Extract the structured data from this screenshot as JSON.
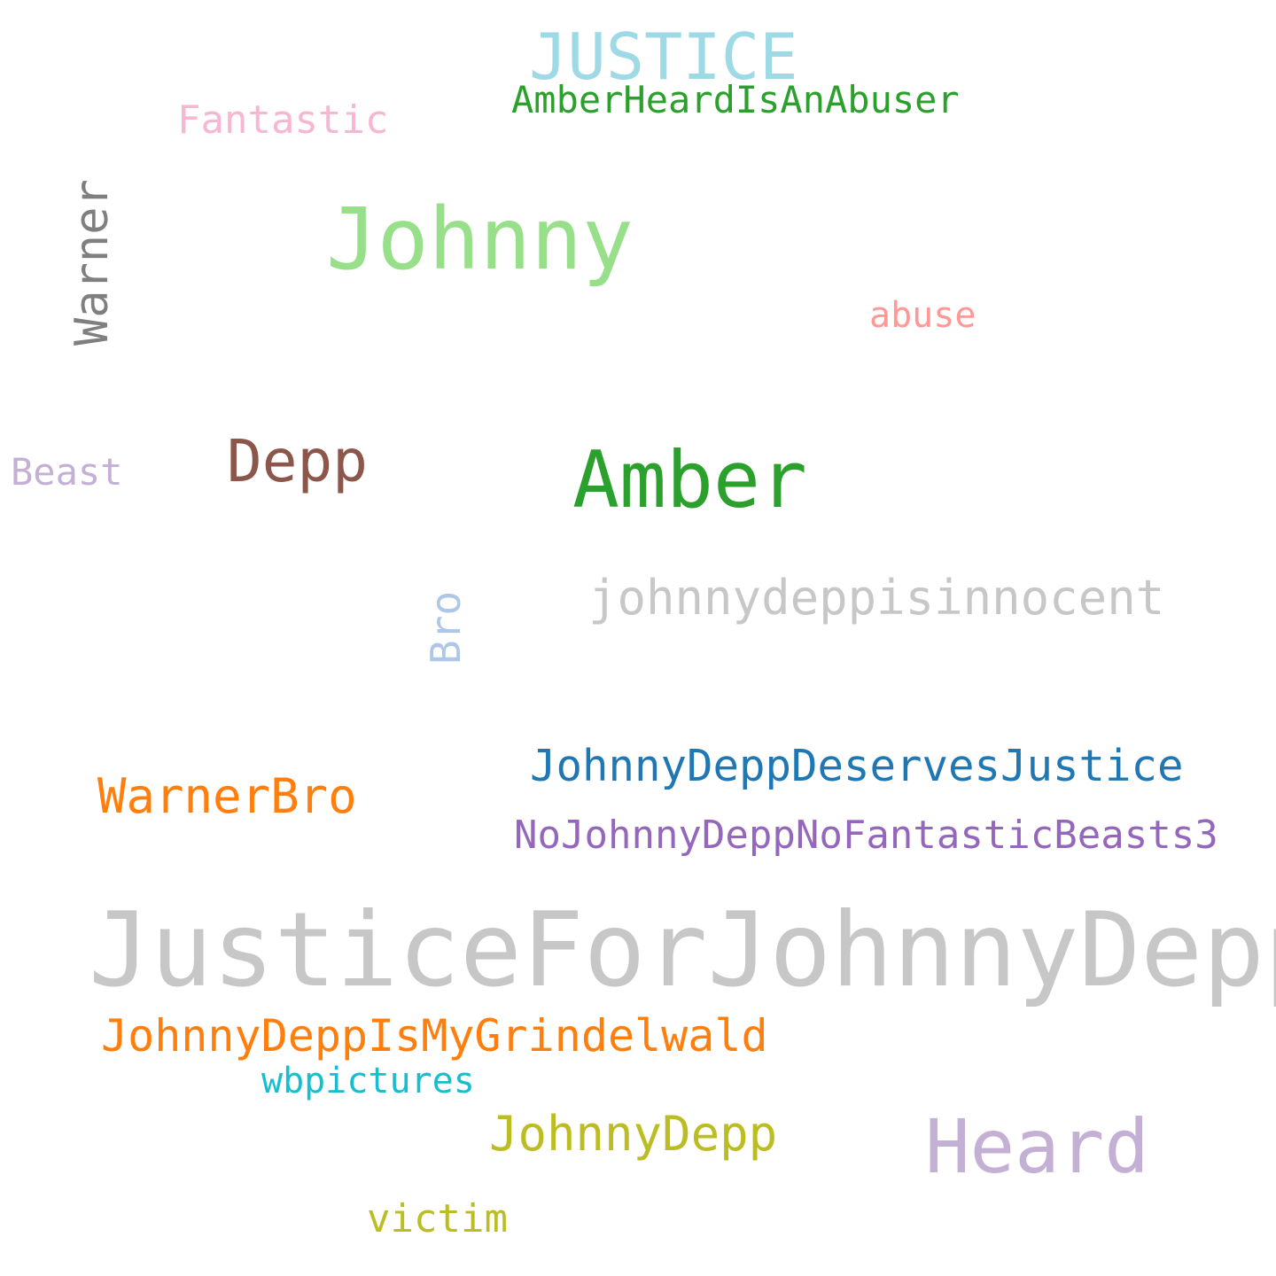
{
  "words": [
    {
      "id": "justiceforjohnnydepp",
      "text": "JusticeForJohnnyDepp",
      "color": "#c7c7c7"
    },
    {
      "id": "johnny",
      "text": "Johnny",
      "color": "#98df8a"
    },
    {
      "id": "amber",
      "text": "Amber",
      "color": "#2ca02c"
    },
    {
      "id": "heard",
      "text": "Heard",
      "color": "#c5b0d5"
    },
    {
      "id": "justice",
      "text": "JUSTICE",
      "color": "#9edae5"
    },
    {
      "id": "depp",
      "text": "Depp",
      "color": "#8c564b"
    },
    {
      "id": "warner",
      "text": "Warner",
      "color": "#7f7f7f"
    },
    {
      "id": "johnnydeppisinnocent",
      "text": "johnnydeppisinnocent",
      "color": "#c7c7c7"
    },
    {
      "id": "johnnydeppdeservesjustice",
      "text": "JohnnyDeppDeservesJustice",
      "color": "#1f77b4"
    },
    {
      "id": "warnerbro",
      "text": "WarnerBro",
      "color": "#ff7f0e"
    },
    {
      "id": "johnnydeppismygrindelwald",
      "text": "JohnnyDeppIsMyGrindelwald",
      "color": "#ff7f0e"
    },
    {
      "id": "johnnydepp",
      "text": "JohnnyDepp",
      "color": "#bcbd22"
    },
    {
      "id": "nojohnnydeppnofantasticbeasts3",
      "text": "NoJohnnyDeppNoFantasticBeasts3",
      "color": "#9467bd"
    },
    {
      "id": "amberheardisanabuser",
      "text": "AmberHeardIsAnAbuser",
      "color": "#2ca02c"
    },
    {
      "id": "fantastic",
      "text": "Fantastic",
      "color": "#f7b6d2"
    },
    {
      "id": "bro",
      "text": "Bro",
      "color": "#aec7e8"
    },
    {
      "id": "beast",
      "text": "Beast",
      "color": "#c5b0d5"
    },
    {
      "id": "wbpictures",
      "text": "wbpictures",
      "color": "#17becf"
    },
    {
      "id": "abuse",
      "text": "abuse",
      "color": "#ff9896"
    },
    {
      "id": "victim",
      "text": "victim",
      "color": "#bcbd22"
    }
  ]
}
